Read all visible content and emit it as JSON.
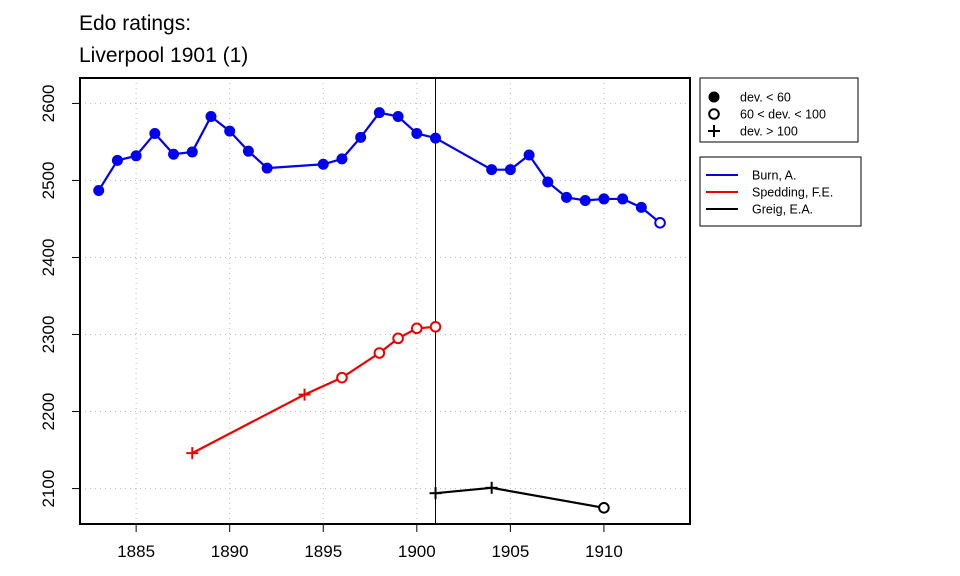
{
  "chart_data": {
    "type": "line",
    "title": [
      "Edo ratings:",
      "Liverpool 1901 (1)"
    ],
    "xlabel": "",
    "ylabel": "",
    "xlim": [
      1882,
      1914.6
    ],
    "ylim": [
      2054,
      2633
    ],
    "xticks": [
      1885,
      1890,
      1895,
      1900,
      1905,
      1910
    ],
    "yticks": [
      2100,
      2200,
      2300,
      2400,
      2500,
      2600
    ],
    "grid": true,
    "reference_line_x": 1901,
    "marker_legend": [
      {
        "marker": "filled-circle",
        "label": "dev. < 60"
      },
      {
        "marker": "open-circle",
        "label": "60 < dev. < 100"
      },
      {
        "marker": "plus",
        "label": "dev. > 100"
      }
    ],
    "series": [
      {
        "name": "Burn, A.",
        "color": "#0000ee",
        "points": [
          {
            "x": 1883,
            "y": 2487,
            "marker": "filled-circle"
          },
          {
            "x": 1884,
            "y": 2526,
            "marker": "filled-circle"
          },
          {
            "x": 1885,
            "y": 2532,
            "marker": "filled-circle"
          },
          {
            "x": 1886,
            "y": 2561,
            "marker": "filled-circle"
          },
          {
            "x": 1887,
            "y": 2534,
            "marker": "filled-circle"
          },
          {
            "x": 1888,
            "y": 2537,
            "marker": "filled-circle"
          },
          {
            "x": 1889,
            "y": 2583,
            "marker": "filled-circle"
          },
          {
            "x": 1890,
            "y": 2564,
            "marker": "filled-circle"
          },
          {
            "x": 1891,
            "y": 2538,
            "marker": "filled-circle"
          },
          {
            "x": 1892,
            "y": 2516,
            "marker": "filled-circle"
          },
          {
            "x": 1895,
            "y": 2521,
            "marker": "filled-circle"
          },
          {
            "x": 1896,
            "y": 2528,
            "marker": "filled-circle"
          },
          {
            "x": 1897,
            "y": 2556,
            "marker": "filled-circle"
          },
          {
            "x": 1898,
            "y": 2588,
            "marker": "filled-circle"
          },
          {
            "x": 1899,
            "y": 2583,
            "marker": "filled-circle"
          },
          {
            "x": 1900,
            "y": 2561,
            "marker": "filled-circle"
          },
          {
            "x": 1901,
            "y": 2555,
            "marker": "filled-circle"
          },
          {
            "x": 1904,
            "y": 2514,
            "marker": "filled-circle"
          },
          {
            "x": 1905,
            "y": 2514,
            "marker": "filled-circle"
          },
          {
            "x": 1906,
            "y": 2533,
            "marker": "filled-circle"
          },
          {
            "x": 1907,
            "y": 2498,
            "marker": "filled-circle"
          },
          {
            "x": 1908,
            "y": 2478,
            "marker": "filled-circle"
          },
          {
            "x": 1909,
            "y": 2474,
            "marker": "filled-circle"
          },
          {
            "x": 1910,
            "y": 2476,
            "marker": "filled-circle"
          },
          {
            "x": 1911,
            "y": 2476,
            "marker": "filled-circle"
          },
          {
            "x": 1912,
            "y": 2465,
            "marker": "filled-circle"
          },
          {
            "x": 1913,
            "y": 2445,
            "marker": "open-circle"
          }
        ]
      },
      {
        "name": "Spedding, F.E.",
        "color": "#ee0000",
        "points": [
          {
            "x": 1888,
            "y": 2146,
            "marker": "plus"
          },
          {
            "x": 1894,
            "y": 2222,
            "marker": "plus"
          },
          {
            "x": 1896,
            "y": 2244,
            "marker": "open-circle"
          },
          {
            "x": 1898,
            "y": 2276,
            "marker": "open-circle"
          },
          {
            "x": 1899,
            "y": 2295,
            "marker": "open-circle"
          },
          {
            "x": 1900,
            "y": 2308,
            "marker": "open-circle"
          },
          {
            "x": 1901,
            "y": 2310,
            "marker": "open-circle"
          }
        ]
      },
      {
        "name": "Greig, E.A.",
        "color": "#000000",
        "points": [
          {
            "x": 1901,
            "y": 2094,
            "marker": "plus"
          },
          {
            "x": 1904,
            "y": 2101,
            "marker": "plus"
          },
          {
            "x": 1910,
            "y": 2075,
            "marker": "open-circle"
          }
        ]
      }
    ]
  }
}
